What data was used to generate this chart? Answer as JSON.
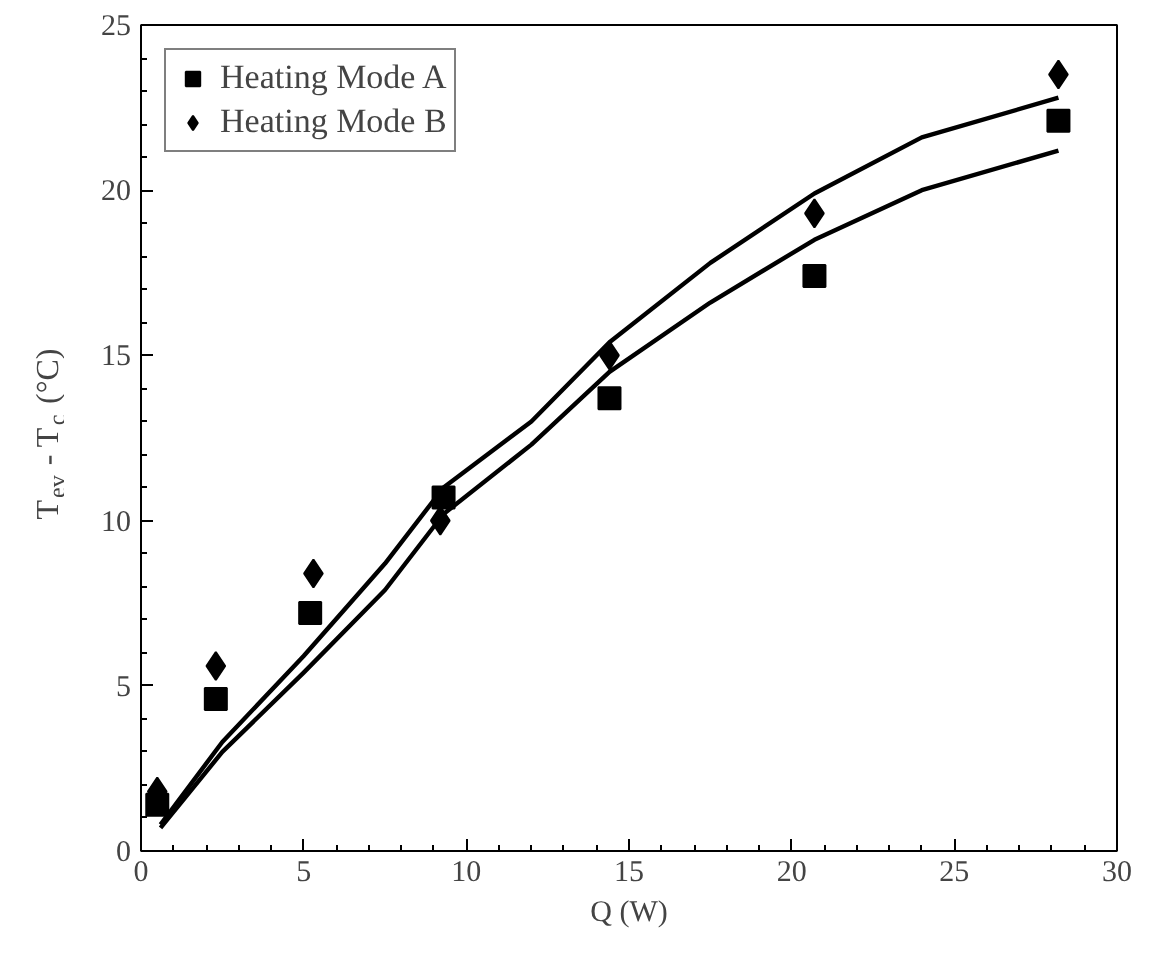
{
  "chart_data": {
    "type": "scatter",
    "xlabel": "Q (W)",
    "ylabel": "T$_{ev}$ - T$_{c}$ (°C)",
    "xlim": [
      0,
      30
    ],
    "ylim": [
      0,
      25
    ],
    "xticks": [
      0,
      5,
      10,
      15,
      20,
      25,
      30
    ],
    "yticks": [
      0,
      5,
      10,
      15,
      20,
      25
    ],
    "grid": false,
    "legend": "top left",
    "series": [
      {
        "name": "Heating Mode A",
        "marker": "square",
        "color": "#000000",
        "x": [
          0.5,
          2.3,
          5.2,
          9.3,
          14.4,
          20.7,
          28.2
        ],
        "values": [
          1.4,
          4.6,
          7.2,
          10.7,
          13.7,
          17.4,
          22.1
        ]
      },
      {
        "name": "Heating Mode B",
        "marker": "diamond",
        "color": "#000000",
        "x": [
          0.5,
          2.3,
          5.3,
          9.2,
          14.4,
          20.7,
          28.2
        ],
        "values": [
          1.8,
          5.6,
          8.4,
          10.0,
          15.0,
          19.3,
          23.5
        ]
      },
      {
        "type": "line",
        "line_style": "solid",
        "color": "#000000",
        "x": [
          0.6,
          2.5,
          5,
          7.5,
          9.3,
          12,
          14.4,
          17.5,
          20.7,
          24,
          28.2
        ],
        "values": [
          0.7,
          3.0,
          5.4,
          7.9,
          10.2,
          12.3,
          14.5,
          16.6,
          18.5,
          20.0,
          21.2
        ]
      },
      {
        "type": "line",
        "line_style": "solid",
        "color": "#000000",
        "x": [
          0.6,
          2.5,
          5,
          7.5,
          9.3,
          12,
          14.4,
          17.5,
          20.7,
          24,
          28.2
        ],
        "values": [
          0.8,
          3.3,
          5.9,
          8.7,
          11.0,
          13.0,
          15.4,
          17.8,
          19.9,
          21.6,
          22.8
        ]
      }
    ]
  }
}
